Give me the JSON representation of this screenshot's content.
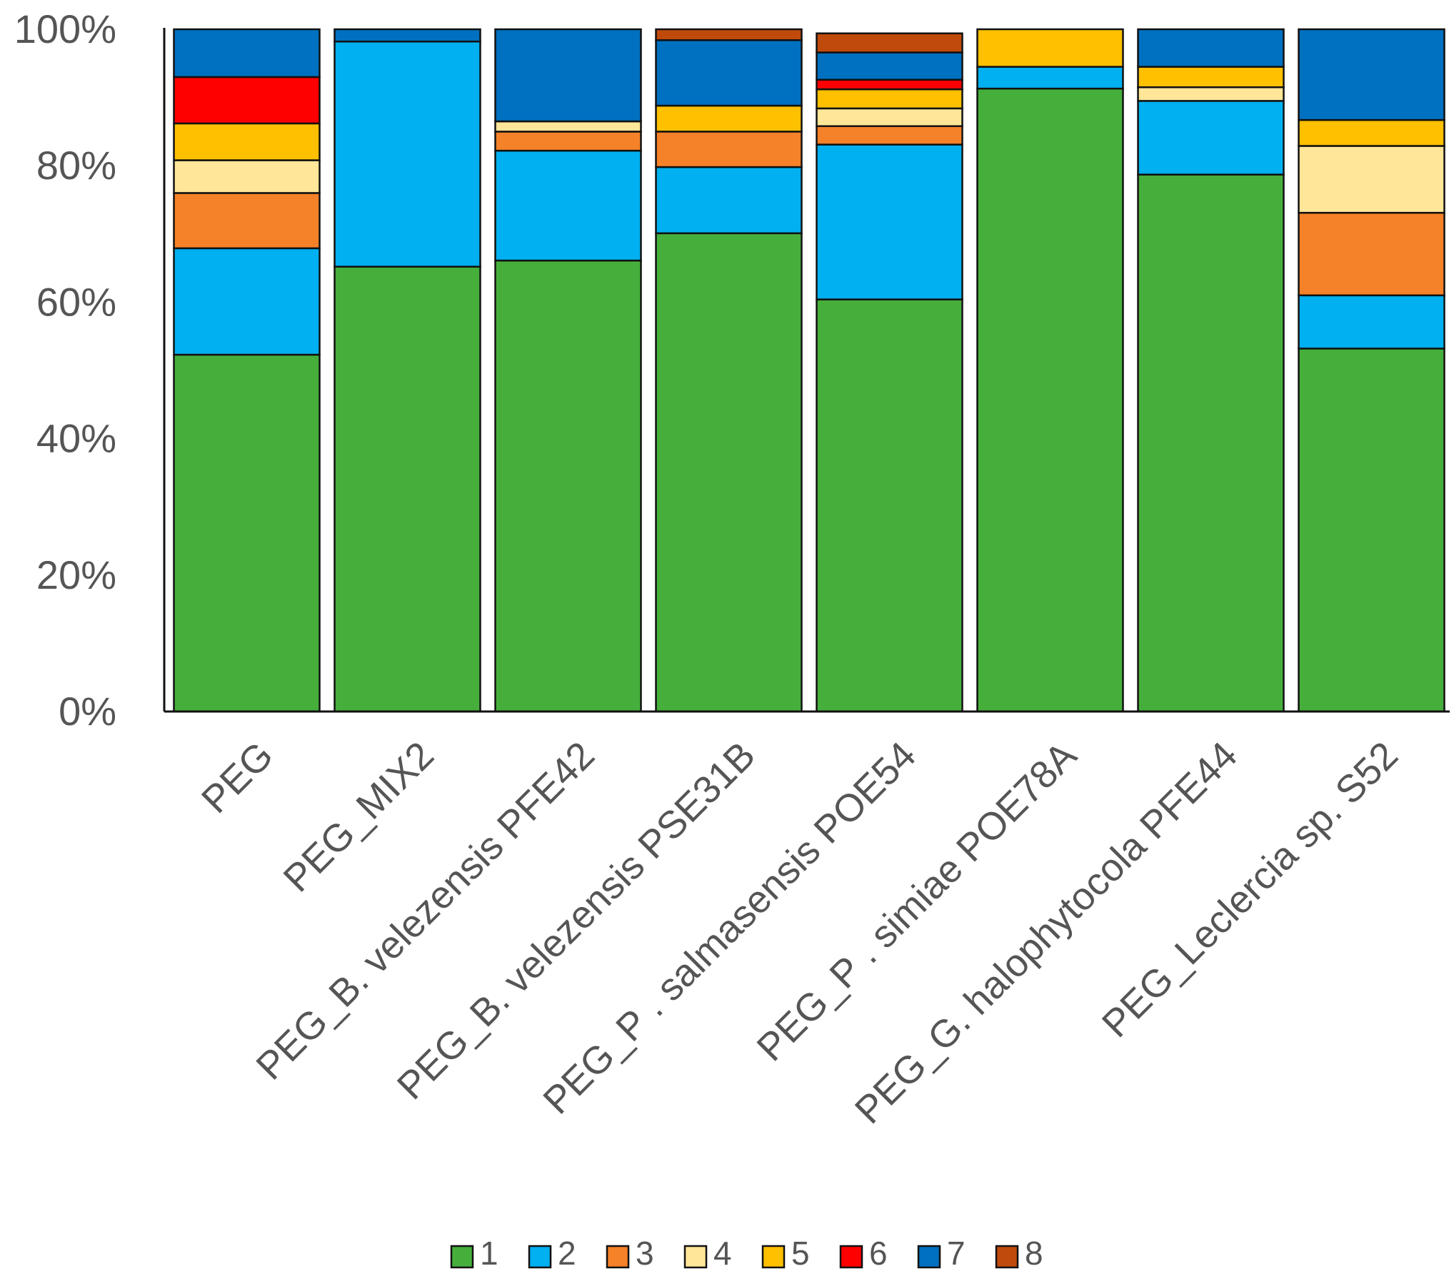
{
  "chart_data": {
    "type": "bar",
    "stacked": true,
    "normalized": true,
    "title": "",
    "xlabel": "",
    "ylabel": "",
    "ylim": [
      0,
      100
    ],
    "y_ticks": [
      "0%",
      "20%",
      "40%",
      "60%",
      "80%",
      "100%"
    ],
    "categories": [
      "PEG",
      "PEG_MIX2",
      "PEG_B. velezensis PFE42",
      "PEG_B. velezensis PSE31B",
      "PEG_P . salmasensis POE54",
      "PEG_P . simiae POE78A",
      "PEG_G. halophytocola PFE44",
      "PEG_Leclercia sp. S52"
    ],
    "series": [
      {
        "name": "1",
        "color": "#46AF3C",
        "values": [
          52.3,
          65.2,
          66.1,
          70.1,
          60.4,
          91.3,
          78.7,
          53.2
        ]
      },
      {
        "name": "2",
        "color": "#00B0F0",
        "values": [
          15.6,
          33.0,
          16.1,
          9.7,
          22.7,
          3.2,
          10.8,
          7.8
        ]
      },
      {
        "name": "3",
        "color": "#F58128",
        "values": [
          8.1,
          0,
          2.8,
          5.2,
          2.7,
          0,
          0,
          12.1
        ]
      },
      {
        "name": "4",
        "color": "#FFE699",
        "values": [
          4.8,
          0,
          1.5,
          0,
          2.6,
          0,
          2.0,
          9.8
        ]
      },
      {
        "name": "5",
        "color": "#FFC000",
        "values": [
          5.4,
          0,
          0,
          3.8,
          2.8,
          5.5,
          3.0,
          3.8
        ]
      },
      {
        "name": "6",
        "color": "#FF0000",
        "values": [
          6.8,
          0,
          0,
          0,
          1.4,
          0,
          0,
          0
        ]
      },
      {
        "name": "7",
        "color": "#0070C0",
        "values": [
          7.0,
          1.8,
          13.5,
          9.6,
          4.0,
          0,
          5.5,
          13.3
        ]
      },
      {
        "name": "8",
        "color": "#C04A0C",
        "values": [
          0,
          0,
          0,
          1.6,
          2.8,
          0,
          0,
          0
        ]
      }
    ],
    "legend_position": "bottom"
  }
}
